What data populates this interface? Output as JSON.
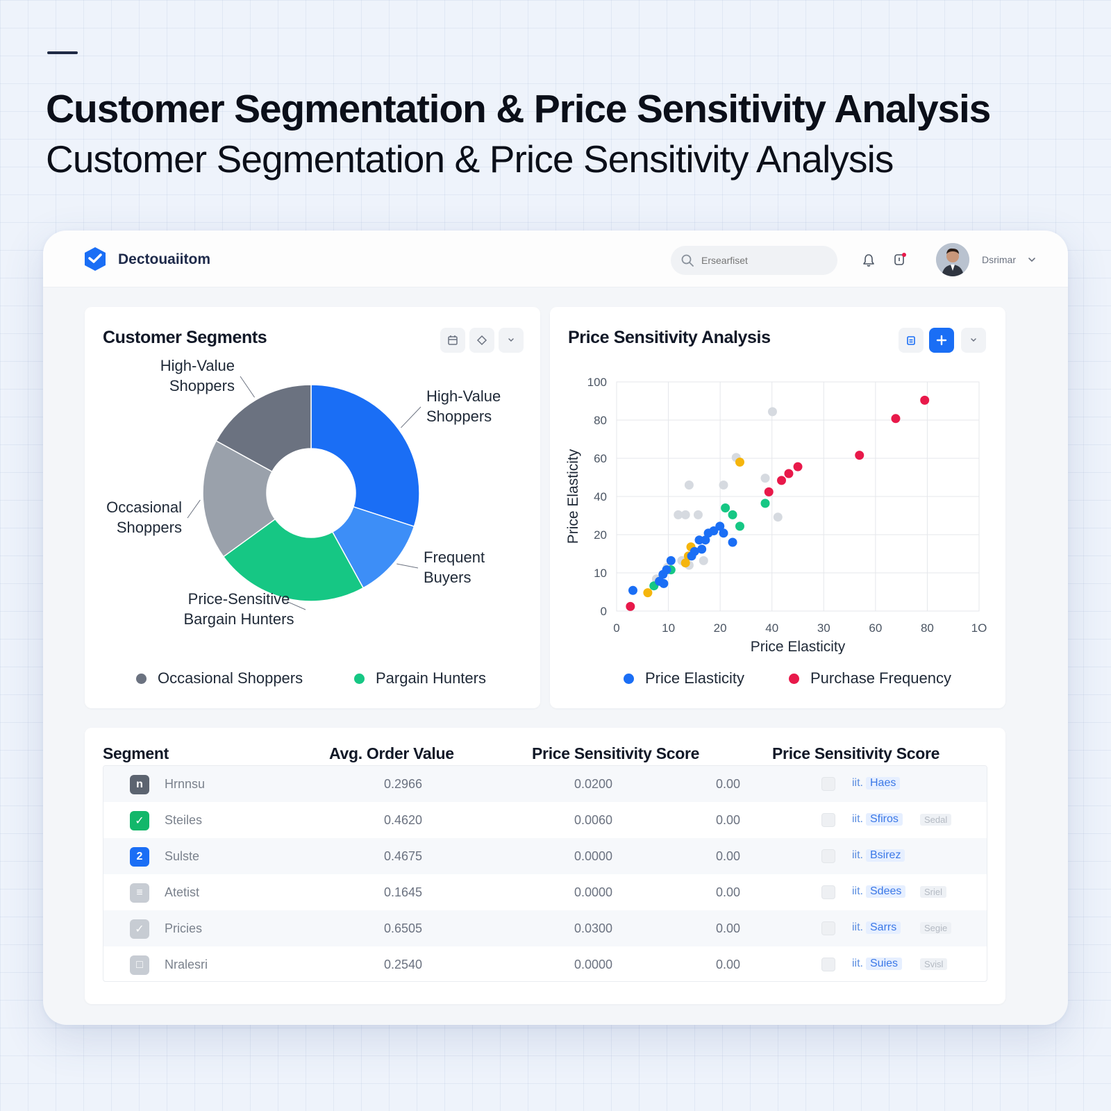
{
  "hero": {
    "title": "Customer Segmentation & Price Sensitivity Analysis",
    "subtitle": "Customer Segmentation & Price Sensitivity Analysis"
  },
  "app": {
    "brand": "Dectouaiitom",
    "search_placeholder": "Ersearfiset",
    "user_name": "Dsrimar"
  },
  "segments_card": {
    "title": "Customer Segments",
    "icons": [
      "calendar-icon",
      "tag-icon",
      "chevron-down-icon"
    ],
    "legend": [
      {
        "label": "Occasional Shoppers",
        "color": "#6b7280"
      },
      {
        "label": "Pargain Hunters",
        "color": "#16c784"
      }
    ]
  },
  "price_card": {
    "title": "Price Sensitivity Analysis",
    "icons": [
      "clipboard-icon",
      "plus-icon",
      "chevron-down-icon"
    ],
    "legend": [
      {
        "label": "Price Elasticity",
        "color": "#1a6ef5"
      },
      {
        "label": "Purchase Frequency",
        "color": "#e8194a"
      }
    ]
  },
  "chart_data": [
    {
      "type": "pie",
      "style": "donut",
      "slices": [
        {
          "label": "High-Value Shoppers",
          "value": 30,
          "color": "#1a6ef5"
        },
        {
          "label": "Frequent Buyers",
          "value": 12,
          "color": "#3d8ef7"
        },
        {
          "label": "Price-Sensitive Bargain Hunters",
          "value": 23,
          "color": "#16c784"
        },
        {
          "label": "Occasional Shoppers",
          "value": 18,
          "color": "#9aa1ab"
        },
        {
          "label": "High-Value Shoppers",
          "value": 17,
          "color": "#6b7280"
        }
      ],
      "callouts": [
        {
          "text": "High-Value Shoppers",
          "slice": 0
        },
        {
          "text": "Frequent Buyers",
          "slice": 1
        },
        {
          "text": "Price-Sensitive Bargain Hunters",
          "slice": 2
        },
        {
          "text": "Occasional Shoppers",
          "slice": 3
        },
        {
          "text": "High-Value Shoppers",
          "slice": 4
        }
      ]
    },
    {
      "type": "scatter",
      "xlabel": "Price Elasticity",
      "ylabel": "Price Elasticity",
      "x_ticks": [
        "0",
        "10",
        "20",
        "40",
        "30",
        "60",
        "80",
        "1O"
      ],
      "y_ticks": [
        "0",
        "10",
        "20",
        "40",
        "60",
        "80",
        "100"
      ],
      "grid": true,
      "legend_position": "bottom",
      "series": [
        {
          "name": "Price Elasticity",
          "color": "#1a6ef5",
          "points": [
            [
              4.5,
              9
            ],
            [
              11.8,
              13
            ],
            [
              12.8,
              16
            ],
            [
              13.8,
              18
            ],
            [
              15,
              22
            ],
            [
              20.7,
              24
            ],
            [
              21.5,
              26
            ],
            [
              22.8,
              31
            ],
            [
              23.5,
              27
            ],
            [
              24.5,
              31
            ],
            [
              25.3,
              34
            ],
            [
              26.8,
              35
            ],
            [
              28.5,
              37
            ],
            [
              29.5,
              34
            ],
            [
              32,
              30
            ],
            [
              13,
              12
            ]
          ]
        },
        {
          "name": "Purchase Frequency",
          "color": "#e8194a",
          "points": [
            [
              3.8,
              2
            ],
            [
              42,
              52
            ],
            [
              45.5,
              57
            ],
            [
              47.5,
              60
            ],
            [
              50,
              63
            ],
            [
              67,
              68
            ],
            [
              77,
              84
            ],
            [
              85,
              92
            ]
          ]
        },
        {
          "color": "#f5b50d",
          "points": [
            [
              8.6,
              8
            ],
            [
              19,
              21
            ],
            [
              19.8,
              24
            ],
            [
              20.5,
              28
            ],
            [
              34,
              65
            ]
          ]
        },
        {
          "color": "#16c784",
          "points": [
            [
              10.3,
              11
            ],
            [
              15,
              18
            ],
            [
              30,
              45
            ],
            [
              32,
              42
            ],
            [
              34,
              37
            ],
            [
              41,
              47
            ]
          ]
        },
        {
          "color": "#d6dae0",
          "points": [
            [
              11,
              14
            ],
            [
              14,
              19
            ],
            [
              20,
              20
            ],
            [
              24,
              22
            ],
            [
              17,
              42
            ],
            [
              19,
              42
            ],
            [
              20,
              55
            ],
            [
              22.5,
              42
            ],
            [
              29.5,
              55
            ],
            [
              33,
              67
            ],
            [
              43,
              87
            ],
            [
              44.5,
              41
            ],
            [
              18,
              22
            ],
            [
              41,
              58
            ]
          ]
        }
      ]
    }
  ],
  "table": {
    "headers": [
      "Segment",
      "Avg. Order Value",
      "Price Sensitivity Score",
      "Price Sensitivity Score"
    ],
    "rows": [
      {
        "name": "Hrnnsu",
        "aov": "0.2966",
        "pss": "0.0200",
        "pss2": "0.00",
        "status": "iit.",
        "pill": "Haes",
        "tag": "",
        "icon_text": "n",
        "icon_color": "#5c6470"
      },
      {
        "name": "Steiles",
        "aov": "0.4620",
        "pss": "0.0060",
        "pss2": "0.00",
        "status": "iit.",
        "pill": "Sfiros",
        "tag": "Sedal",
        "icon_text": "✓",
        "icon_color": "#12b76a"
      },
      {
        "name": "Sulste",
        "aov": "0.4675",
        "pss": "0.0000",
        "pss2": "0.00",
        "status": "iit.",
        "pill": "Bsirez",
        "tag": "",
        "icon_text": "2",
        "icon_color": "#1a6ef5"
      },
      {
        "name": "Atetist",
        "aov": "0.1645",
        "pss": "0.0000",
        "pss2": "0.00",
        "status": "iit.",
        "pill": "Sdees",
        "tag": "Sriel",
        "icon_text": "≡",
        "icon_color": "#c7ccd3"
      },
      {
        "name": "Pricies",
        "aov": "0.6505",
        "pss": "0.0300",
        "pss2": "0.00",
        "status": "iit.",
        "pill": "Sarrs",
        "tag": "Segie",
        "icon_text": "✓",
        "icon_color": "#c7ccd3"
      },
      {
        "name": "Nralesri",
        "aov": "0.2540",
        "pss": "0.0000",
        "pss2": "0.00",
        "status": "iit.",
        "pill": "Suies",
        "tag": "Svisl",
        "icon_text": "□",
        "icon_color": "#c7ccd3"
      }
    ]
  }
}
